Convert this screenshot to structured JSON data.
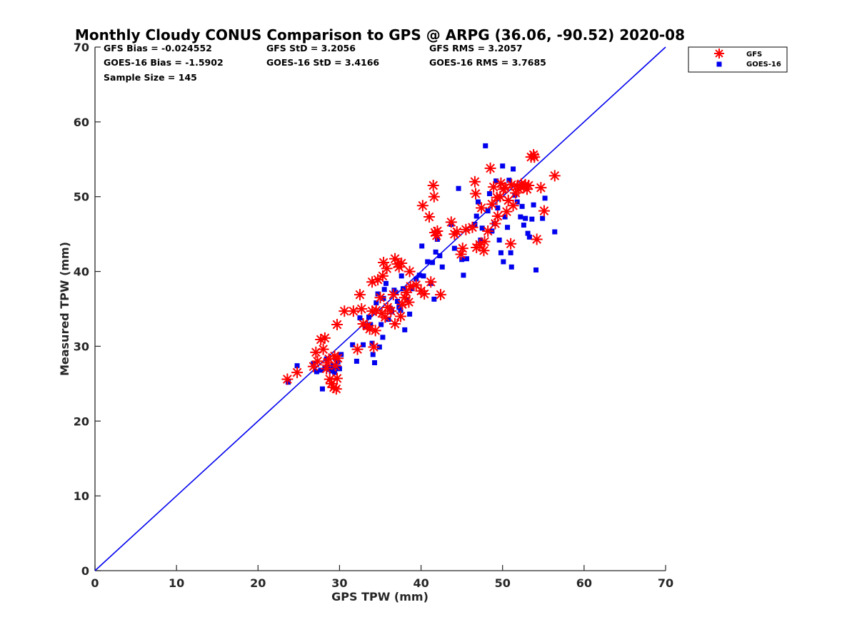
{
  "chart_data": {
    "type": "scatter",
    "title": "Monthly Cloudy CONUS Comparison to GPS @ ARPG (36.06, -90.52) 2020-08",
    "xlabel": "GPS TPW (mm)",
    "ylabel": "Measured TPW (mm)",
    "xlim": [
      0,
      70
    ],
    "ylim": [
      0,
      70
    ],
    "xticks": [
      "0",
      "10",
      "20",
      "30",
      "40",
      "50",
      "60",
      "70"
    ],
    "yticks": [
      "0",
      "10",
      "20",
      "30",
      "40",
      "50",
      "60",
      "70"
    ],
    "grid": false,
    "legend_position": "top-right, outside axes",
    "stats": {
      "gfs_bias": "GFS Bias = -0.024552",
      "goes_bias": "GOES-16 Bias = -1.5902",
      "sample_size": "Sample Size = 145",
      "gfs_std": "GFS StD = 3.2056",
      "goes_std": "GOES-16 StD = 3.4166",
      "gfs_rms": "GFS RMS = 3.2057",
      "goes_rms": "GOES-16 RMS = 3.7685"
    },
    "reference_line": {
      "x": [
        0,
        70
      ],
      "y": [
        0,
        70
      ],
      "color": "#0000ee"
    },
    "series": [
      {
        "name": "GFS",
        "marker": "asterisk",
        "color": "#ff0000",
        "points": [
          [
            23.6,
            25.6
          ],
          [
            24.8,
            26.5
          ],
          [
            26.8,
            27.3
          ],
          [
            27.1,
            29.2
          ],
          [
            27.7,
            30.9
          ],
          [
            28.2,
            31.1
          ],
          [
            28.0,
            29.6
          ],
          [
            28.4,
            27.0
          ],
          [
            28.8,
            25.6
          ],
          [
            29.0,
            25.0
          ],
          [
            29.3,
            24.5
          ],
          [
            29.6,
            24.3
          ],
          [
            29.7,
            25.7
          ],
          [
            29.5,
            27.4
          ],
          [
            29.4,
            28.7
          ],
          [
            28.5,
            27.8
          ],
          [
            29.8,
            28.4
          ],
          [
            29.7,
            32.9
          ],
          [
            30.6,
            34.7
          ],
          [
            31.7,
            34.7
          ],
          [
            32.2,
            29.6
          ],
          [
            32.5,
            36.9
          ],
          [
            32.7,
            35.0
          ],
          [
            32.9,
            33.0
          ],
          [
            33.4,
            32.7
          ],
          [
            33.7,
            32.3
          ],
          [
            34.0,
            34.7
          ],
          [
            34.4,
            32.1
          ],
          [
            34.2,
            29.9
          ],
          [
            34.0,
            38.6
          ],
          [
            34.5,
            34.8
          ],
          [
            34.7,
            38.9
          ],
          [
            35.0,
            36.5
          ],
          [
            35.4,
            41.2
          ],
          [
            35.3,
            39.4
          ],
          [
            35.2,
            34.4
          ],
          [
            35.6,
            33.9
          ],
          [
            35.9,
            35.2
          ],
          [
            36.3,
            34.7
          ],
          [
            36.6,
            36.9
          ],
          [
            36.8,
            41.7
          ],
          [
            37.1,
            41.0
          ],
          [
            37.3,
            40.6
          ],
          [
            37.6,
            41.1
          ],
          [
            36.8,
            33.0
          ],
          [
            37.5,
            34.0
          ],
          [
            37.7,
            35.6
          ],
          [
            38.0,
            36.5
          ],
          [
            38.2,
            37.2
          ],
          [
            38.6,
            40.0
          ],
          [
            38.5,
            35.9
          ],
          [
            39.4,
            38.2
          ],
          [
            40.0,
            37.4
          ],
          [
            40.2,
            48.8
          ],
          [
            40.4,
            37.0
          ],
          [
            41.0,
            47.3
          ],
          [
            41.2,
            38.6
          ],
          [
            41.6,
            50.0
          ],
          [
            41.5,
            51.5
          ],
          [
            41.7,
            45.2
          ],
          [
            41.9,
            44.8
          ],
          [
            42.4,
            36.9
          ],
          [
            43.7,
            46.6
          ],
          [
            44.1,
            45.0
          ],
          [
            44.4,
            45.3
          ],
          [
            45.1,
            43.1
          ],
          [
            44.9,
            42.3
          ],
          [
            45.5,
            45.6
          ],
          [
            46.3,
            45.9
          ],
          [
            46.6,
            52.0
          ],
          [
            46.7,
            50.4
          ],
          [
            46.8,
            43.2
          ],
          [
            47.2,
            43.6
          ],
          [
            47.4,
            48.5
          ],
          [
            47.7,
            42.8
          ],
          [
            47.8,
            44.0
          ],
          [
            48.2,
            45.4
          ],
          [
            48.5,
            53.8
          ],
          [
            48.7,
            49.0
          ],
          [
            48.9,
            51.3
          ],
          [
            49.1,
            46.4
          ],
          [
            49.3,
            49.9
          ],
          [
            49.4,
            47.4
          ],
          [
            49.7,
            50.0
          ],
          [
            49.8,
            51.8
          ],
          [
            50.1,
            51.0
          ],
          [
            50.3,
            51.2
          ],
          [
            50.5,
            48.0
          ],
          [
            50.7,
            49.5
          ],
          [
            51.0,
            43.7
          ],
          [
            51.1,
            51.6
          ],
          [
            51.3,
            48.8
          ],
          [
            51.6,
            50.5
          ],
          [
            51.8,
            51.4
          ],
          [
            52.0,
            51.0
          ],
          [
            52.3,
            51.7
          ],
          [
            52.6,
            51.3
          ],
          [
            52.8,
            51.6
          ],
          [
            53.0,
            51.0
          ],
          [
            53.2,
            51.5
          ],
          [
            53.5,
            55.3
          ],
          [
            53.8,
            55.6
          ],
          [
            53.9,
            55.3
          ],
          [
            54.2,
            44.3
          ],
          [
            54.7,
            51.2
          ],
          [
            55.1,
            48.1
          ],
          [
            56.4,
            52.8
          ],
          [
            27.3,
            28.0
          ],
          [
            28.7,
            28.3
          ],
          [
            35.8,
            40.4
          ],
          [
            38.7,
            38.0
          ],
          [
            42.0,
            45.4
          ]
        ]
      },
      {
        "name": "GOES-16",
        "marker": "square",
        "color": "#0000ee",
        "points": [
          [
            23.7,
            25.2
          ],
          [
            24.8,
            27.4
          ],
          [
            26.8,
            27.7
          ],
          [
            27.2,
            26.6
          ],
          [
            27.7,
            26.8
          ],
          [
            27.9,
            24.3
          ],
          [
            28.2,
            27.1
          ],
          [
            28.5,
            27.2
          ],
          [
            28.7,
            26.9
          ],
          [
            29.0,
            26.7
          ],
          [
            29.2,
            27.4
          ],
          [
            29.4,
            26.5
          ],
          [
            29.6,
            27.2
          ],
          [
            29.8,
            27.9
          ],
          [
            30.0,
            27.0
          ],
          [
            28.4,
            28.3
          ],
          [
            29.5,
            28.4
          ],
          [
            30.2,
            28.9
          ],
          [
            31.6,
            30.2
          ],
          [
            32.1,
            28.0
          ],
          [
            32.5,
            33.8
          ],
          [
            32.9,
            30.2
          ],
          [
            33.2,
            32.6
          ],
          [
            33.6,
            33.9
          ],
          [
            33.8,
            32.9
          ],
          [
            34.0,
            30.4
          ],
          [
            34.1,
            28.9
          ],
          [
            34.3,
            27.8
          ],
          [
            34.5,
            35.8
          ],
          [
            34.7,
            37.0
          ],
          [
            34.9,
            29.9
          ],
          [
            35.1,
            32.9
          ],
          [
            35.3,
            31.2
          ],
          [
            35.4,
            36.4
          ],
          [
            35.5,
            37.6
          ],
          [
            35.7,
            38.4
          ],
          [
            36.0,
            33.6
          ],
          [
            36.2,
            35.1
          ],
          [
            36.4,
            34.6
          ],
          [
            36.7,
            37.5
          ],
          [
            36.9,
            37.2
          ],
          [
            37.1,
            36.0
          ],
          [
            37.3,
            35.2
          ],
          [
            37.5,
            34.8
          ],
          [
            37.6,
            39.4
          ],
          [
            37.8,
            37.7
          ],
          [
            38.0,
            32.2
          ],
          [
            38.3,
            36.2
          ],
          [
            38.6,
            34.3
          ],
          [
            38.9,
            37.7
          ],
          [
            39.4,
            39.0
          ],
          [
            39.8,
            39.5
          ],
          [
            40.1,
            43.4
          ],
          [
            40.3,
            39.4
          ],
          [
            40.8,
            41.3
          ],
          [
            41.2,
            38.4
          ],
          [
            41.4,
            41.2
          ],
          [
            41.6,
            36.3
          ],
          [
            41.8,
            42.6
          ],
          [
            42.0,
            44.3
          ],
          [
            42.3,
            42.1
          ],
          [
            42.6,
            40.6
          ],
          [
            43.7,
            46.3
          ],
          [
            44.1,
            43.1
          ],
          [
            44.6,
            51.1
          ],
          [
            45.0,
            41.6
          ],
          [
            45.2,
            39.5
          ],
          [
            45.6,
            41.7
          ],
          [
            46.6,
            46.3
          ],
          [
            46.8,
            47.4
          ],
          [
            47.0,
            49.3
          ],
          [
            47.3,
            44.2
          ],
          [
            47.5,
            45.8
          ],
          [
            47.9,
            56.8
          ],
          [
            48.2,
            48.1
          ],
          [
            48.4,
            50.4
          ],
          [
            48.7,
            45.4
          ],
          [
            49.0,
            46.4
          ],
          [
            49.2,
            52.1
          ],
          [
            49.4,
            48.5
          ],
          [
            49.6,
            44.2
          ],
          [
            49.8,
            42.5
          ],
          [
            50.0,
            54.1
          ],
          [
            50.1,
            41.3
          ],
          [
            50.3,
            47.3
          ],
          [
            50.6,
            45.9
          ],
          [
            50.8,
            52.2
          ],
          [
            51.0,
            42.5
          ],
          [
            51.1,
            40.6
          ],
          [
            51.3,
            53.7
          ],
          [
            51.5,
            50.2
          ],
          [
            51.8,
            49.3
          ],
          [
            52.2,
            47.3
          ],
          [
            52.4,
            48.7
          ],
          [
            52.6,
            46.2
          ],
          [
            52.8,
            47.1
          ],
          [
            53.1,
            45.1
          ],
          [
            53.3,
            44.6
          ],
          [
            53.6,
            47.0
          ],
          [
            53.8,
            48.9
          ],
          [
            54.1,
            40.2
          ],
          [
            54.9,
            47.1
          ],
          [
            55.2,
            49.8
          ],
          [
            56.4,
            45.3
          ]
        ]
      }
    ]
  }
}
